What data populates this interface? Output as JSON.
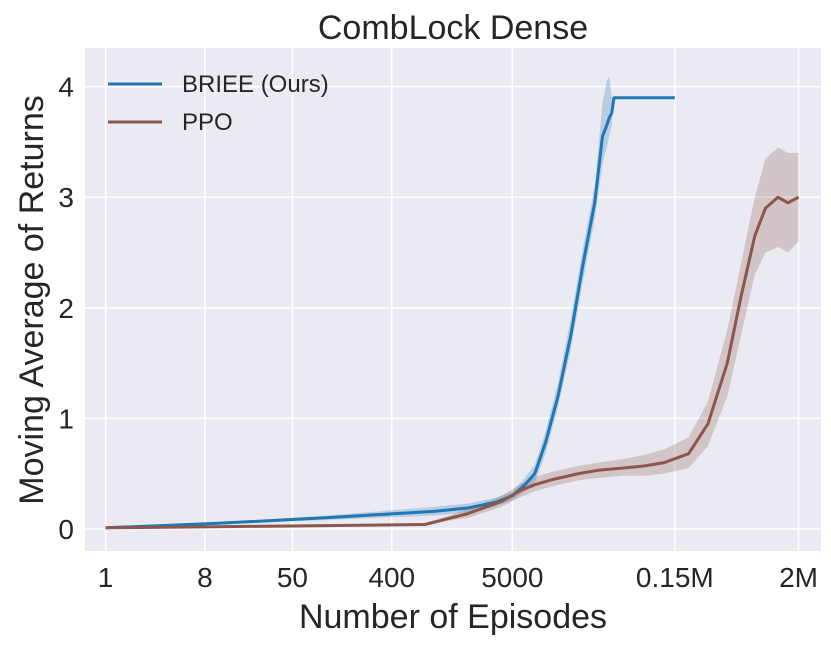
{
  "chart_data": {
    "type": "line",
    "title": "CombLock Dense",
    "xlabel": "Number of Episodes",
    "ylabel": "Moving Average of Returns",
    "xscale": "log",
    "xlim": [
      0.65,
      3200000
    ],
    "ylim": [
      -0.2,
      4.35
    ],
    "x_ticks": [
      {
        "value": 1,
        "label": "1"
      },
      {
        "value": 8,
        "label": "8"
      },
      {
        "value": 50,
        "label": "50"
      },
      {
        "value": 400,
        "label": "400"
      },
      {
        "value": 5000,
        "label": "5000"
      },
      {
        "value": 150000,
        "label": "0.15M"
      },
      {
        "value": 2000000,
        "label": "2M"
      }
    ],
    "y_ticks": [
      {
        "value": 0,
        "label": "0"
      },
      {
        "value": 1,
        "label": "1"
      },
      {
        "value": 2,
        "label": "2"
      },
      {
        "value": 3,
        "label": "3"
      },
      {
        "value": 4,
        "label": "4"
      }
    ],
    "grid": true,
    "legend_position": "top-left",
    "series": [
      {
        "name": "BRIEE (Ours)",
        "color": "#1f77b4",
        "x": [
          1,
          10,
          100,
          1000,
          2000,
          3500,
          5000,
          6500,
          8000,
          10000,
          13000,
          17000,
          22000,
          28000,
          33000,
          36000,
          38000,
          40000,
          42000,
          45000,
          50000,
          60000,
          80000,
          100000,
          120000,
          150000
        ],
        "y": [
          0.01,
          0.05,
          0.1,
          0.16,
          0.19,
          0.24,
          0.3,
          0.4,
          0.5,
          0.78,
          1.2,
          1.75,
          2.4,
          2.95,
          3.55,
          3.65,
          3.72,
          3.76,
          3.9,
          3.9,
          3.9,
          3.9,
          3.9,
          3.9,
          3.9,
          3.9
        ],
        "lower": [
          0.01,
          0.04,
          0.08,
          0.12,
          0.15,
          0.2,
          0.26,
          0.34,
          0.42,
          0.68,
          1.1,
          1.62,
          2.25,
          2.8,
          3.3,
          3.45,
          3.55,
          3.65,
          3.9,
          3.9,
          3.9,
          3.9,
          3.9,
          3.9,
          3.9,
          3.9
        ],
        "upper": [
          0.01,
          0.06,
          0.12,
          0.2,
          0.23,
          0.28,
          0.34,
          0.46,
          0.58,
          0.88,
          1.32,
          1.9,
          2.55,
          3.1,
          3.85,
          4.05,
          4.1,
          3.9,
          3.9,
          3.9,
          3.9,
          3.9,
          3.9,
          3.9,
          3.9,
          3.9
        ]
      },
      {
        "name": "PPO",
        "color": "#8c564b",
        "x": [
          1,
          10,
          100,
          800,
          2000,
          4000,
          6000,
          8000,
          12000,
          20000,
          30000,
          50000,
          80000,
          120000,
          200000,
          300000,
          450000,
          600000,
          800000,
          1000000,
          1300000,
          1600000,
          2000000
        ],
        "y": [
          0.01,
          0.02,
          0.03,
          0.04,
          0.14,
          0.25,
          0.35,
          0.4,
          0.45,
          0.5,
          0.53,
          0.55,
          0.57,
          0.6,
          0.68,
          0.95,
          1.5,
          2.1,
          2.65,
          2.9,
          3.0,
          2.95,
          3.0
        ],
        "lower": [
          0.01,
          0.02,
          0.03,
          0.04,
          0.1,
          0.2,
          0.29,
          0.34,
          0.39,
          0.44,
          0.46,
          0.48,
          0.48,
          0.5,
          0.55,
          0.75,
          1.2,
          1.75,
          2.3,
          2.5,
          2.55,
          2.5,
          2.6
        ],
        "upper": [
          0.01,
          0.02,
          0.03,
          0.05,
          0.18,
          0.3,
          0.41,
          0.47,
          0.52,
          0.57,
          0.6,
          0.63,
          0.67,
          0.72,
          0.83,
          1.15,
          1.8,
          2.4,
          3.0,
          3.35,
          3.45,
          3.4,
          3.4
        ]
      }
    ]
  }
}
